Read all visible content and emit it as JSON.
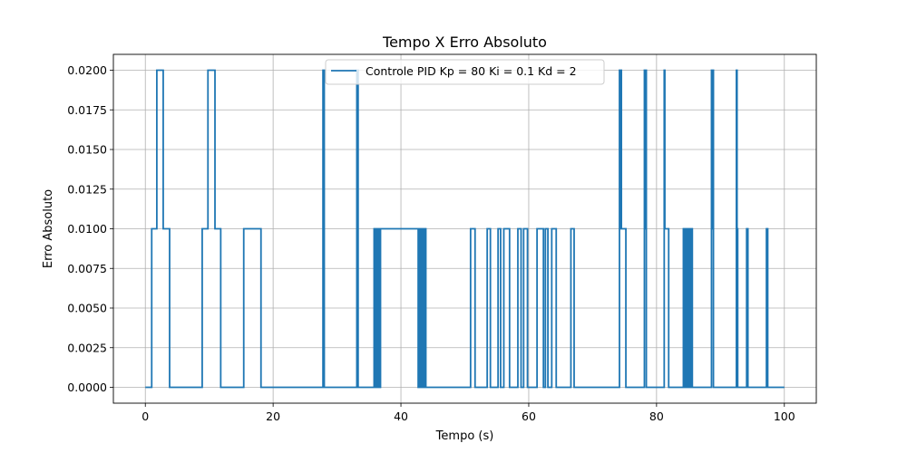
{
  "chart_data": {
    "type": "line",
    "title": "Tempo X Erro Absoluto",
    "xlabel": "Tempo (s)",
    "ylabel": "Erro Absoluto",
    "xlim": [
      -5,
      105
    ],
    "ylim": [
      -0.001,
      0.021
    ],
    "xticks": [
      "0",
      "20",
      "40",
      "60",
      "80",
      "100"
    ],
    "xtick_values": [
      0,
      20,
      40,
      60,
      80,
      100
    ],
    "yticks": [
      "0.0000",
      "0.0025",
      "0.0050",
      "0.0075",
      "0.0100",
      "0.0125",
      "0.0150",
      "0.0175",
      "0.0200"
    ],
    "ytick_values": [
      0,
      0.0025,
      0.005,
      0.0075,
      0.01,
      0.0125,
      0.015,
      0.0175,
      0.02
    ],
    "grid": true,
    "legend_position": "top-center",
    "series": [
      {
        "name": "Controle PID Kp = 80 Ki = 0.1 Kd = 2",
        "color": "#1f77b4",
        "step": true,
        "x": [
          0,
          1.0,
          1.8,
          2.8,
          3.8,
          8.9,
          9.8,
          10.9,
          11.8,
          15.4,
          18.1,
          27.8,
          27.85,
          27.9,
          28.0,
          33.1,
          33.15,
          33.25,
          33.3,
          35.8,
          35.9,
          36.0,
          36.1,
          36.2,
          36.3,
          36.4,
          36.5,
          36.6,
          36.7,
          36.8,
          42.7,
          42.8,
          42.9,
          43.0,
          43.1,
          43.2,
          43.3,
          43.4,
          43.5,
          43.6,
          43.7,
          43.8,
          43.9,
          50.9,
          51.6,
          53.5,
          54.0,
          55.2,
          55.6,
          56.1,
          57.0,
          58.3,
          58.8,
          59.2,
          59.8,
          61.3,
          62.3,
          62.6,
          63.0,
          63.6,
          64.3,
          66.6,
          67.1,
          74.2,
          74.3,
          74.4,
          74.5,
          74.8,
          75.2,
          78.1,
          78.2,
          78.3,
          78.4,
          81.2,
          81.3,
          81.4,
          81.6,
          81.9,
          84.2,
          84.4,
          84.6,
          84.8,
          85.0,
          85.2,
          85.4,
          85.6,
          88.6,
          88.7,
          88.8,
          88.9,
          92.5,
          92.6,
          92.7,
          94.1,
          94.3,
          97.2,
          97.4,
          100.0
        ],
        "y": [
          0,
          0.01,
          0.02,
          0.01,
          0,
          0.01,
          0.02,
          0.01,
          0,
          0.01,
          0,
          0.02,
          0.01,
          0.02,
          0,
          0.02,
          0.01,
          0.02,
          0,
          0.01,
          0,
          0.01,
          0,
          0.01,
          0,
          0.01,
          0,
          0.01,
          0,
          0.01,
          0,
          0.01,
          0,
          0.01,
          0,
          0.01,
          0,
          0.01,
          0,
          0.01,
          0,
          0.01,
          0,
          0.01,
          0,
          0.01,
          0,
          0.01,
          0,
          0.01,
          0,
          0.01,
          0,
          0.01,
          0,
          0.01,
          0,
          0.01,
          0,
          0.01,
          0,
          0.01,
          0,
          0.02,
          0.01,
          0.02,
          0.01,
          0.01,
          0,
          0.02,
          0.01,
          0.02,
          0,
          0.02,
          0.01,
          0.01,
          0.01,
          0,
          0.01,
          0,
          0.01,
          0,
          0.01,
          0,
          0.01,
          0,
          0.02,
          0.01,
          0.02,
          0,
          0.02,
          0.01,
          0,
          0.01,
          0,
          0.01,
          0,
          0
        ]
      }
    ]
  }
}
